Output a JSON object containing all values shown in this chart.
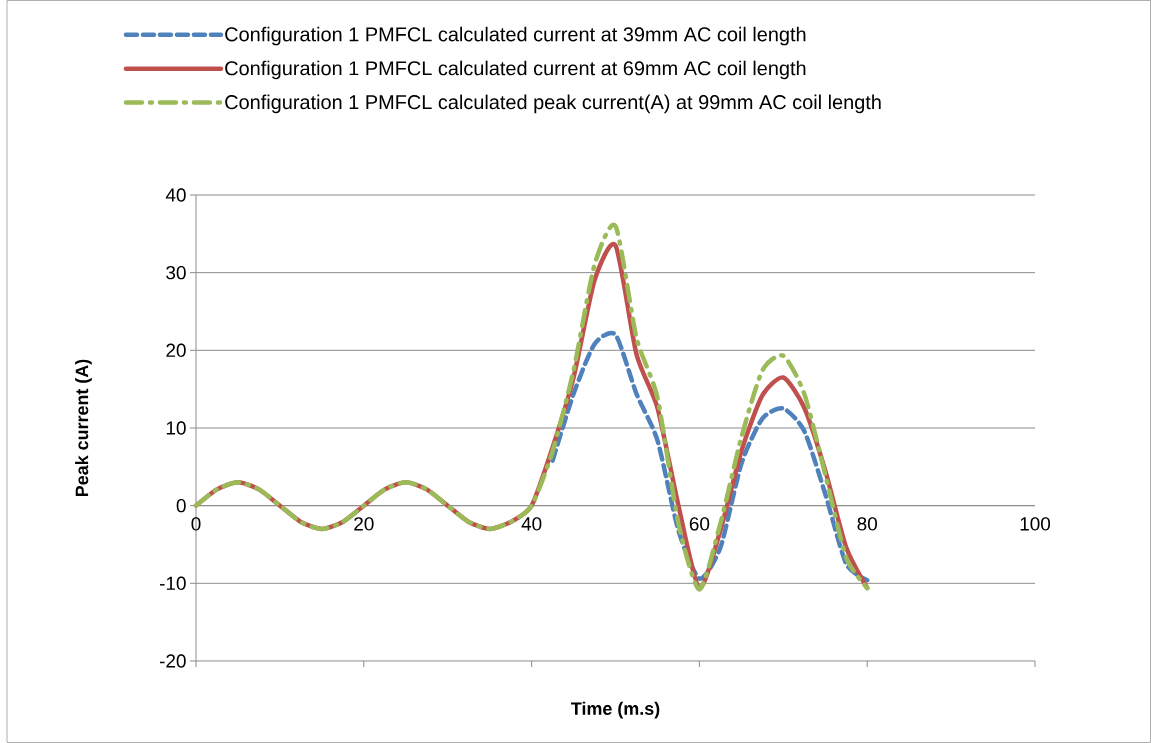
{
  "chart_data": {
    "type": "line",
    "xlabel": "Time (m.s)",
    "ylabel": "Peak current (A)",
    "x": [
      0,
      2.5,
      5,
      7.5,
      10,
      12.5,
      15,
      17.5,
      20,
      22.5,
      25,
      27.5,
      30,
      32.5,
      35,
      37.5,
      40,
      42.5,
      45,
      47.5,
      50,
      52.5,
      55,
      57.5,
      60,
      62.5,
      65,
      67.5,
      70,
      72.5,
      75,
      77.5,
      80
    ],
    "series": [
      {
        "name": "Configuration 1 PMFCL calculated current at 39mm AC coil length",
        "color": "#4f81bd",
        "line_style": "dashed",
        "values": [
          null,
          null,
          null,
          null,
          null,
          null,
          null,
          null,
          null,
          null,
          null,
          null,
          null,
          null,
          null,
          null,
          null,
          5.8,
          14.4,
          20.8,
          22,
          14.4,
          8.4,
          -3.2,
          -9.4,
          -5.4,
          5.4,
          11.2,
          12.5,
          9.6,
          1.5,
          -7.5,
          -9.6
        ]
      },
      {
        "name": "Configuration 1 PMFCL calculated current at 69mm AC coil length",
        "color": "#c0504d",
        "line_style": "solid",
        "values": [
          0,
          2.1,
          3,
          2.1,
          0,
          -2.1,
          -3,
          -2.1,
          0,
          2.1,
          3,
          2.1,
          0,
          -2.1,
          -3,
          -2.1,
          0,
          7.5,
          16.5,
          29,
          33.5,
          19.5,
          12.6,
          0,
          -10.6,
          -3.2,
          7,
          14.2,
          16.5,
          12.6,
          4.5,
          -5.4,
          -10.6
        ]
      },
      {
        "name": "Configuration 1 PMFCL calculated peak current(A) at 99mm AC coil length",
        "color": "#9bbb59",
        "line_style": "dashdot",
        "values": [
          0,
          2.1,
          3,
          2.1,
          0,
          -2.1,
          -3,
          -2.1,
          0,
          2.1,
          3,
          2.1,
          0,
          -2.1,
          -3,
          -2.1,
          0,
          7,
          17.4,
          31,
          36,
          21.6,
          13.9,
          -2.3,
          -10.8,
          -2.3,
          8.8,
          17.4,
          19.3,
          14.4,
          4,
          -6.7,
          -10.6
        ]
      }
    ],
    "xlim": [
      0,
      100
    ],
    "xticks": [
      0,
      20,
      40,
      60,
      80,
      100
    ],
    "ylim": [
      -20,
      40
    ],
    "yticks": [
      -20,
      -10,
      0,
      10,
      20,
      30,
      40
    ],
    "grid": "y",
    "legend": "top",
    "marker": "none"
  }
}
